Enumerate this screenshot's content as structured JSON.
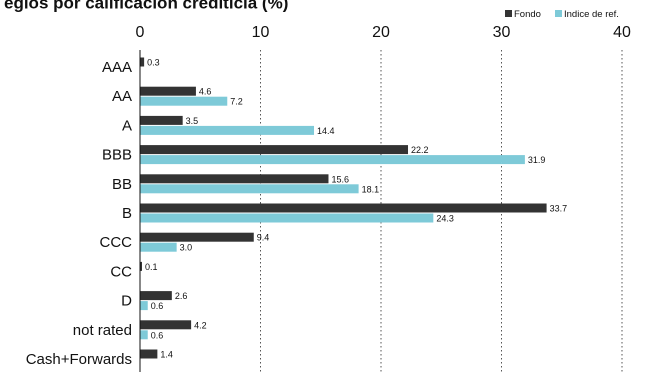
{
  "chart_data": {
    "type": "bar",
    "orientation": "horizontal",
    "title": "egios por calificación crediticia (%)",
    "categories": [
      "AAA",
      "AA",
      "A",
      "BBB",
      "BB",
      "B",
      "CCC",
      "CC",
      "D",
      "not rated",
      "Cash+Forwards"
    ],
    "series": [
      {
        "name": "Fondo",
        "color": "#333333",
        "values": [
          0.3,
          4.6,
          3.5,
          22.2,
          15.6,
          33.7,
          9.4,
          0.1,
          2.6,
          4.2,
          1.4
        ]
      },
      {
        "name": "Indice de ref.",
        "color": "#7ecad8",
        "values": [
          null,
          7.2,
          14.4,
          31.9,
          18.1,
          24.3,
          3.0,
          null,
          0.6,
          0.6,
          null
        ]
      }
    ],
    "data_labels": [
      [
        "0.3",
        "4.6",
        "3.5",
        "22.2",
        "15.6",
        "33.7",
        "9.4",
        "0.1",
        "2.6",
        "4.2",
        "1.4"
      ],
      [
        null,
        "7.2",
        "14.4",
        "31.9",
        "18.1",
        "24.3",
        "3.0",
        null,
        "0.6",
        "0.6",
        null
      ]
    ],
    "xlim": [
      0,
      40
    ],
    "xticks": [
      0,
      10,
      20,
      30,
      40
    ],
    "xtick_labels": [
      "0",
      "10",
      "20",
      "30",
      "40"
    ],
    "grid": "vertical-dotted",
    "legend": "top-right"
  }
}
